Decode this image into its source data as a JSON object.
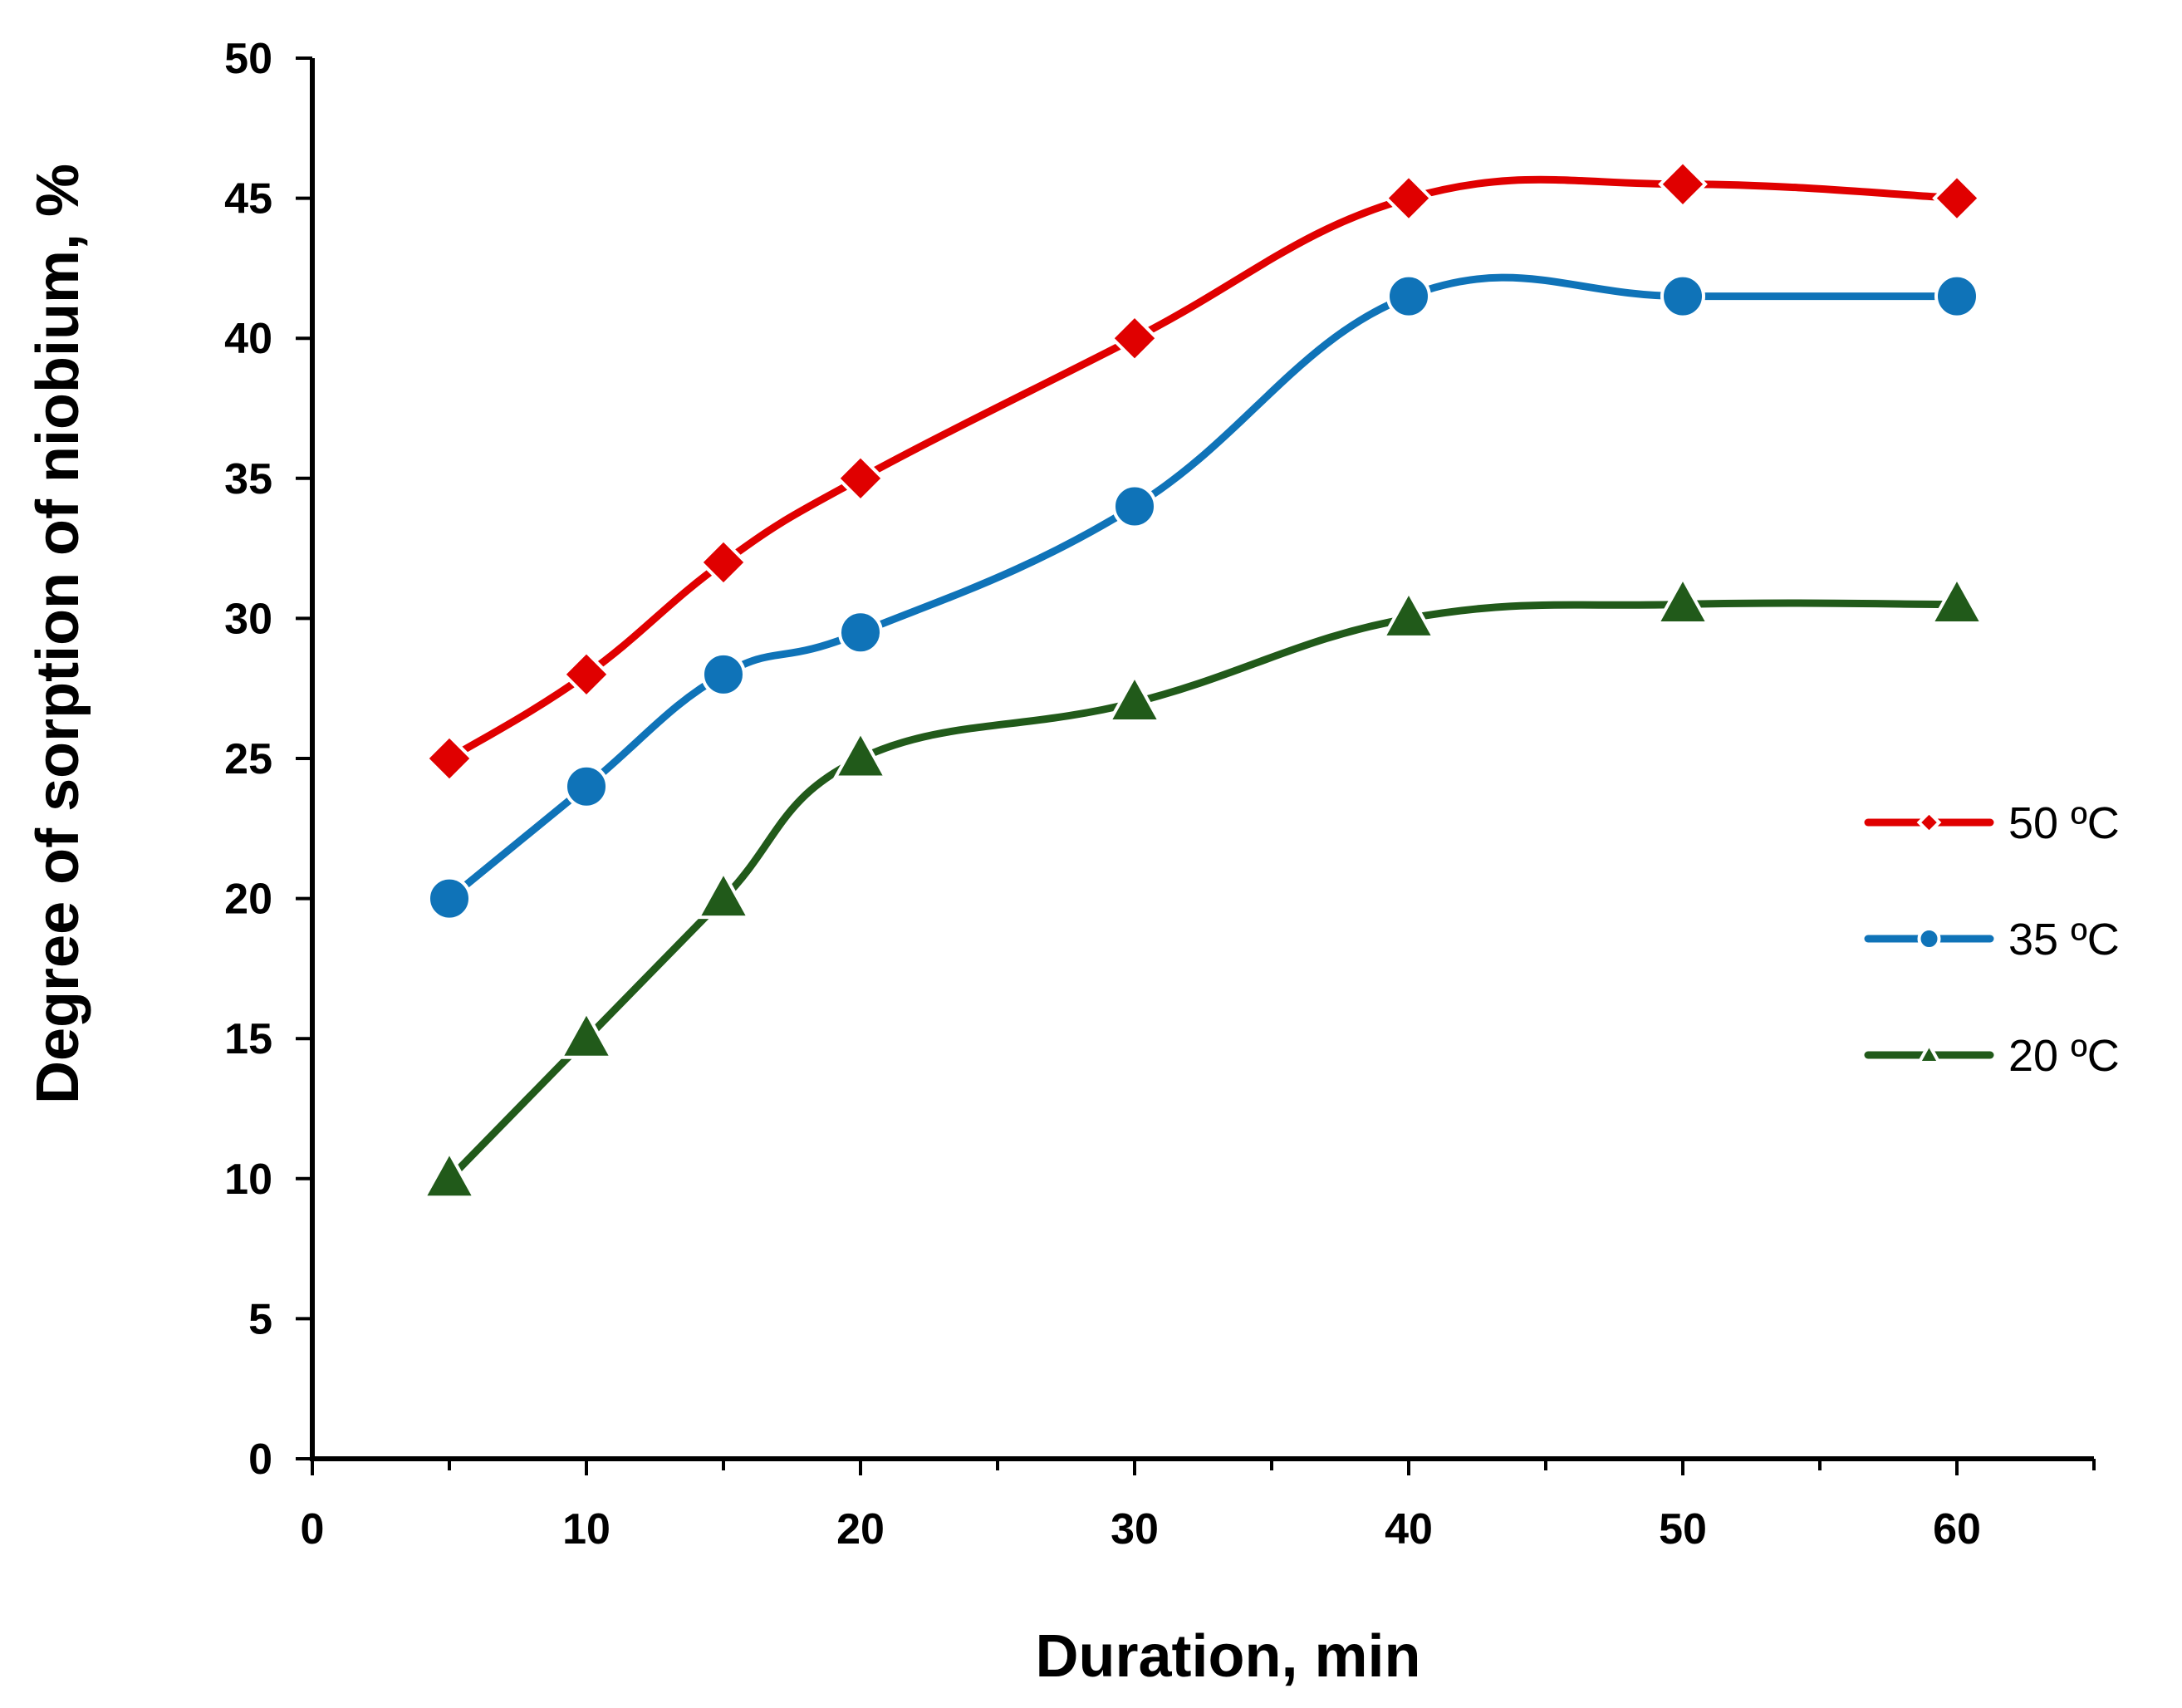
{
  "chart_data": {
    "type": "line",
    "title": "",
    "xlabel": "Duration, min",
    "ylabel": "Degree of sorption of niobium, %",
    "xlim": [
      0,
      65
    ],
    "ylim": [
      0,
      50
    ],
    "x_ticks": [
      0,
      10,
      20,
      30,
      40,
      50,
      60
    ],
    "y_ticks": [
      0,
      5,
      10,
      15,
      20,
      25,
      30,
      35,
      40,
      45,
      50
    ],
    "grid": false,
    "smooth": true,
    "legend_position": "right",
    "x": [
      5,
      10,
      15,
      20,
      30,
      40,
      50,
      60
    ],
    "series": [
      {
        "name": "50 ºC",
        "color": "#e00000",
        "marker": "diamond",
        "values": [
          25,
          28,
          32,
          35,
          40,
          45,
          45.5,
          45
        ]
      },
      {
        "name": "35 ºC",
        "color": "#0f73b8",
        "marker": "circle",
        "values": [
          20,
          24,
          28,
          29.5,
          34,
          41.5,
          41.5,
          41.5
        ]
      },
      {
        "name": "20 ºC",
        "color": "#215a1a",
        "marker": "triangle",
        "values": [
          10,
          15,
          20,
          25,
          27,
          30,
          30.5,
          30.5
        ]
      }
    ]
  }
}
